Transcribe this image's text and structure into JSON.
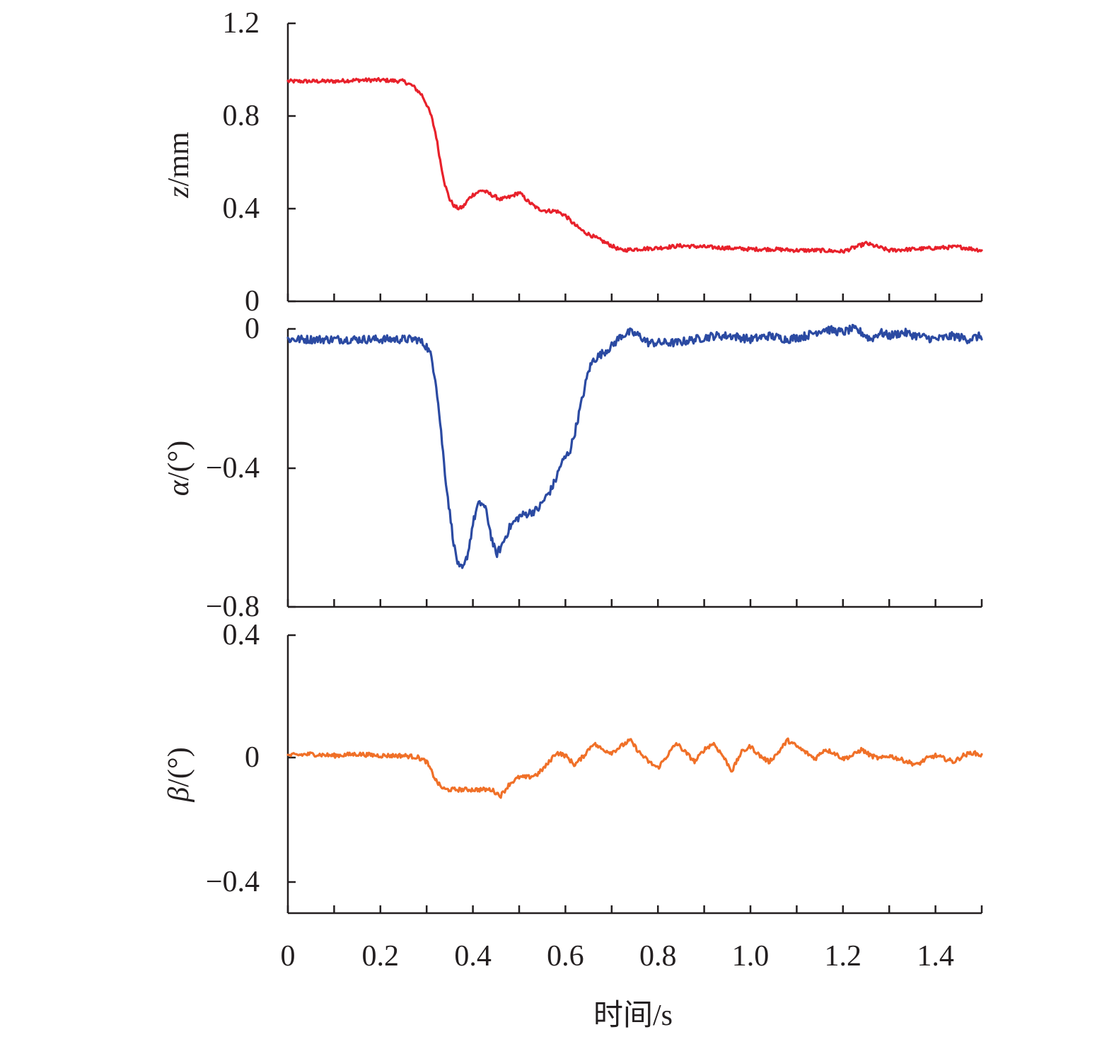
{
  "chart_data": [
    {
      "type": "line",
      "ylabel": "z/mm",
      "ylim": [
        0,
        1.2
      ],
      "yticks": [
        "0",
        "0.4",
        "0.8",
        "1.2"
      ],
      "xlim": [
        0,
        1.5
      ],
      "color": "#e8212b",
      "noise": 0.008,
      "series": [
        {
          "x": [
            0,
            0.05,
            0.1,
            0.15,
            0.2,
            0.25,
            0.27,
            0.29,
            0.3,
            0.31,
            0.32,
            0.33,
            0.34,
            0.35,
            0.36,
            0.37,
            0.38,
            0.39,
            0.4,
            0.42,
            0.44,
            0.46,
            0.48,
            0.5,
            0.52,
            0.54,
            0.56,
            0.58,
            0.6,
            0.62,
            0.64,
            0.66,
            0.68,
            0.7,
            0.72,
            0.75,
            0.8,
            0.85,
            0.9,
            0.95,
            1.0,
            1.05,
            1.1,
            1.15,
            1.2,
            1.25,
            1.3,
            1.35,
            1.4,
            1.45,
            1.5
          ],
          "y": [
            0.95,
            0.95,
            0.95,
            0.955,
            0.955,
            0.95,
            0.93,
            0.89,
            0.85,
            0.8,
            0.72,
            0.6,
            0.5,
            0.44,
            0.41,
            0.4,
            0.41,
            0.44,
            0.46,
            0.48,
            0.46,
            0.44,
            0.45,
            0.47,
            0.43,
            0.4,
            0.39,
            0.39,
            0.37,
            0.33,
            0.3,
            0.28,
            0.26,
            0.24,
            0.22,
            0.225,
            0.23,
            0.24,
            0.235,
            0.23,
            0.225,
            0.225,
            0.22,
            0.22,
            0.215,
            0.25,
            0.22,
            0.225,
            0.23,
            0.235,
            0.22
          ]
        }
      ]
    },
    {
      "type": "line",
      "ylabel": "α/(°)",
      "ylim": [
        -0.8,
        0
      ],
      "yticks": [
        "−0.8",
        "−0.4",
        "0"
      ],
      "xlim": [
        0,
        1.5
      ],
      "color": "#2b4aa2",
      "noise": 0.012,
      "series": [
        {
          "x": [
            0,
            0.05,
            0.1,
            0.15,
            0.2,
            0.25,
            0.28,
            0.3,
            0.31,
            0.32,
            0.33,
            0.34,
            0.35,
            0.36,
            0.37,
            0.38,
            0.39,
            0.4,
            0.41,
            0.42,
            0.43,
            0.44,
            0.45,
            0.46,
            0.47,
            0.48,
            0.5,
            0.52,
            0.54,
            0.55,
            0.57,
            0.58,
            0.59,
            0.6,
            0.61,
            0.62,
            0.63,
            0.64,
            0.65,
            0.66,
            0.68,
            0.7,
            0.72,
            0.74,
            0.76,
            0.78,
            0.8,
            0.84,
            0.88,
            0.92,
            0.96,
            1.0,
            1.04,
            1.08,
            1.12,
            1.16,
            1.2,
            1.22,
            1.24,
            1.26,
            1.28,
            1.3,
            1.33,
            1.36,
            1.4,
            1.44,
            1.47,
            1.5
          ],
          "y": [
            -0.03,
            -0.03,
            -0.03,
            -0.03,
            -0.03,
            -0.03,
            -0.03,
            -0.05,
            -0.08,
            -0.15,
            -0.28,
            -0.42,
            -0.53,
            -0.63,
            -0.69,
            -0.69,
            -0.64,
            -0.56,
            -0.51,
            -0.5,
            -0.53,
            -0.6,
            -0.65,
            -0.63,
            -0.6,
            -0.57,
            -0.54,
            -0.53,
            -0.52,
            -0.5,
            -0.46,
            -0.43,
            -0.39,
            -0.37,
            -0.35,
            -0.3,
            -0.24,
            -0.18,
            -0.12,
            -0.09,
            -0.07,
            -0.05,
            -0.02,
            -0.01,
            -0.02,
            -0.04,
            -0.04,
            -0.04,
            -0.03,
            -0.02,
            -0.02,
            -0.03,
            -0.02,
            -0.03,
            -0.02,
            0.0,
            -0.01,
            0.0,
            -0.01,
            -0.03,
            -0.01,
            -0.02,
            -0.01,
            -0.02,
            -0.03,
            -0.02,
            -0.03,
            -0.02
          ]
        }
      ]
    },
    {
      "type": "line",
      "ylabel": "β/(°)",
      "ylim": [
        -0.5,
        0.4
      ],
      "yticks": [
        "−0.4",
        "0",
        "0.4"
      ],
      "xlim": [
        0,
        1.5
      ],
      "color": "#f07028",
      "noise": 0.007,
      "xlabel": "时间/s",
      "xticks": [
        "0",
        "0.2",
        "0.4",
        "0.6",
        "0.8",
        "1.0",
        "1.2",
        "1.4"
      ],
      "series": [
        {
          "x": [
            0,
            0.05,
            0.1,
            0.15,
            0.2,
            0.25,
            0.28,
            0.3,
            0.31,
            0.32,
            0.33,
            0.34,
            0.36,
            0.4,
            0.42,
            0.44,
            0.46,
            0.48,
            0.5,
            0.52,
            0.54,
            0.56,
            0.58,
            0.6,
            0.62,
            0.64,
            0.66,
            0.68,
            0.7,
            0.72,
            0.74,
            0.76,
            0.78,
            0.8,
            0.82,
            0.84,
            0.86,
            0.88,
            0.9,
            0.92,
            0.94,
            0.96,
            0.98,
            1.0,
            1.02,
            1.04,
            1.06,
            1.08,
            1.1,
            1.12,
            1.14,
            1.16,
            1.18,
            1.2,
            1.22,
            1.24,
            1.26,
            1.28,
            1.3,
            1.32,
            1.34,
            1.36,
            1.38,
            1.4,
            1.42,
            1.44,
            1.46,
            1.48,
            1.5
          ],
          "y": [
            0.01,
            0.015,
            0.01,
            0.015,
            0.01,
            0.01,
            0.005,
            -0.01,
            -0.04,
            -0.07,
            -0.09,
            -0.1,
            -0.1,
            -0.1,
            -0.1,
            -0.1,
            -0.12,
            -0.08,
            -0.06,
            -0.06,
            -0.05,
            -0.02,
            0.02,
            0.01,
            -0.02,
            0.01,
            0.05,
            0.03,
            0.02,
            0.04,
            0.06,
            0.02,
            -0.01,
            -0.03,
            0.01,
            0.05,
            0.02,
            -0.01,
            0.03,
            0.05,
            0.01,
            -0.04,
            0.02,
            0.04,
            0.01,
            -0.01,
            0.02,
            0.06,
            0.04,
            0.02,
            0.0,
            0.03,
            0.02,
            0.0,
            0.01,
            0.03,
            0.01,
            0.0,
            0.01,
            0.0,
            -0.01,
            -0.02,
            0.0,
            0.01,
            0.0,
            -0.01,
            0.01,
            0.02,
            0.01
          ]
        }
      ]
    }
  ]
}
